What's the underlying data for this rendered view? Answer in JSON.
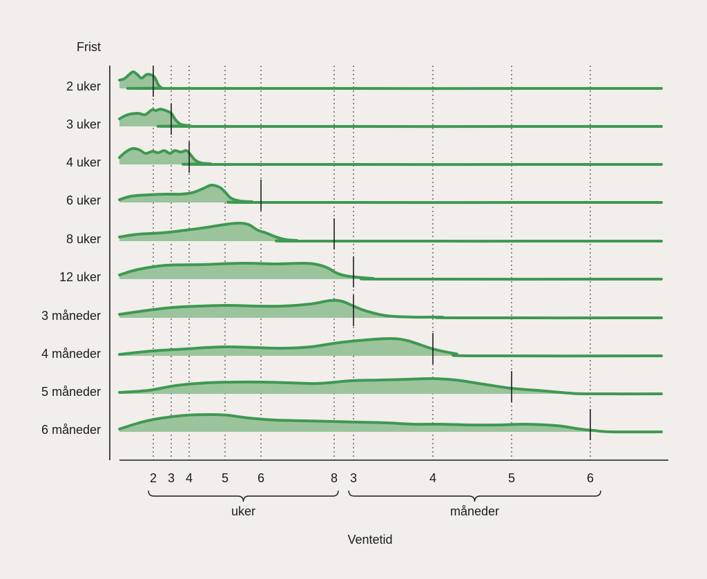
{
  "chart_data": {
    "type": "ridgeline",
    "y_title": "Frist",
    "x_title": "Ventetid",
    "accent_colors": {
      "line": "#3f9851",
      "fill": "#9bc49d",
      "background": "#f1eeec"
    },
    "x_axis": {
      "ticks": [
        {
          "label": "2",
          "unit": "uker"
        },
        {
          "label": "3",
          "unit": "uker"
        },
        {
          "label": "4",
          "unit": "uker"
        },
        {
          "label": "5",
          "unit": "uker"
        },
        {
          "label": "6",
          "unit": "uker"
        },
        {
          "label": "8",
          "unit": "uker"
        },
        {
          "label": "3",
          "unit": "måneder"
        },
        {
          "label": "4",
          "unit": "måneder"
        },
        {
          "label": "5",
          "unit": "måneder"
        },
        {
          "label": "6",
          "unit": "måneder"
        }
      ],
      "groups": [
        {
          "label": "uker"
        },
        {
          "label": "måneder"
        }
      ]
    },
    "series": [
      {
        "label": "2 uker",
        "deadline": "2 uker"
      },
      {
        "label": "3 uker",
        "deadline": "3 uker"
      },
      {
        "label": "4 uker",
        "deadline": "4 uker"
      },
      {
        "label": "6 uker",
        "deadline": "6 uker"
      },
      {
        "label": "8 uker",
        "deadline": "8 uker"
      },
      {
        "label": "12 uker",
        "deadline": "3 måneder"
      },
      {
        "label": "3 måneder",
        "deadline": "3 måneder"
      },
      {
        "label": "4 måneder",
        "deadline": "4 måneder"
      },
      {
        "label": "5 måneder",
        "deadline": "5 måneder"
      },
      {
        "label": "6 måneder",
        "deadline": "6 måneder"
      }
    ]
  }
}
